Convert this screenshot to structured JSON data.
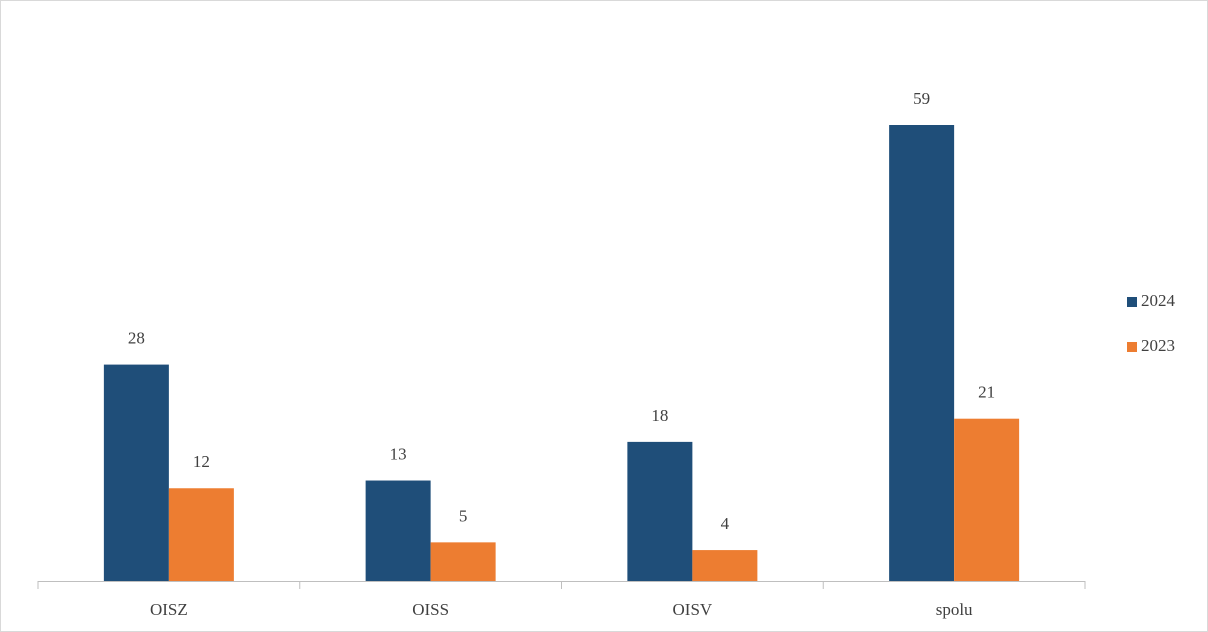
{
  "chart_data": {
    "type": "bar",
    "categories": [
      "OISZ",
      "OISS",
      "OISV",
      "spolu"
    ],
    "series": [
      {
        "name": "2024",
        "color": "#1f4e79",
        "values": [
          28,
          13,
          18,
          59
        ]
      },
      {
        "name": "2023",
        "color": "#ed7d31",
        "values": [
          12,
          5,
          4,
          21
        ]
      }
    ],
    "legend": "right"
  }
}
